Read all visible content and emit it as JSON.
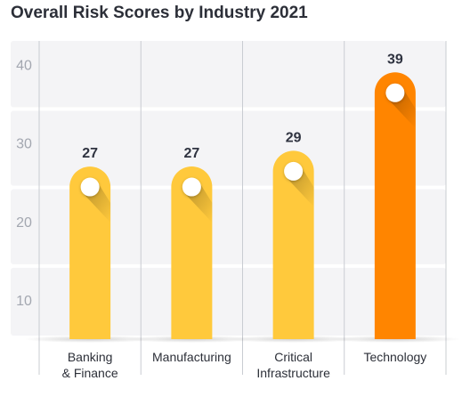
{
  "chart_data": {
    "type": "bar",
    "title": "Overall Risk Scores by Industry 2021",
    "categories": [
      [
        "Banking",
        "& Finance"
      ],
      [
        "Manufacturing"
      ],
      [
        "Critical",
        "Infrastructure"
      ],
      [
        "Technology"
      ]
    ],
    "values": [
      27,
      27,
      29,
      39
    ],
    "data_labels": [
      "27",
      "27",
      "29",
      "39"
    ],
    "yticks": [
      10,
      20,
      30,
      40
    ],
    "ylim": [
      5,
      43
    ],
    "xlabel": "",
    "ylabel": "",
    "grid": true,
    "legend": "none",
    "colors": {
      "bar": "#ffc93c",
      "highlight_bar": "#ff8500",
      "band": "#f4f4f6",
      "divider": "#c9ccd2",
      "marker": "#ffffff"
    },
    "highlight_index": 3
  }
}
